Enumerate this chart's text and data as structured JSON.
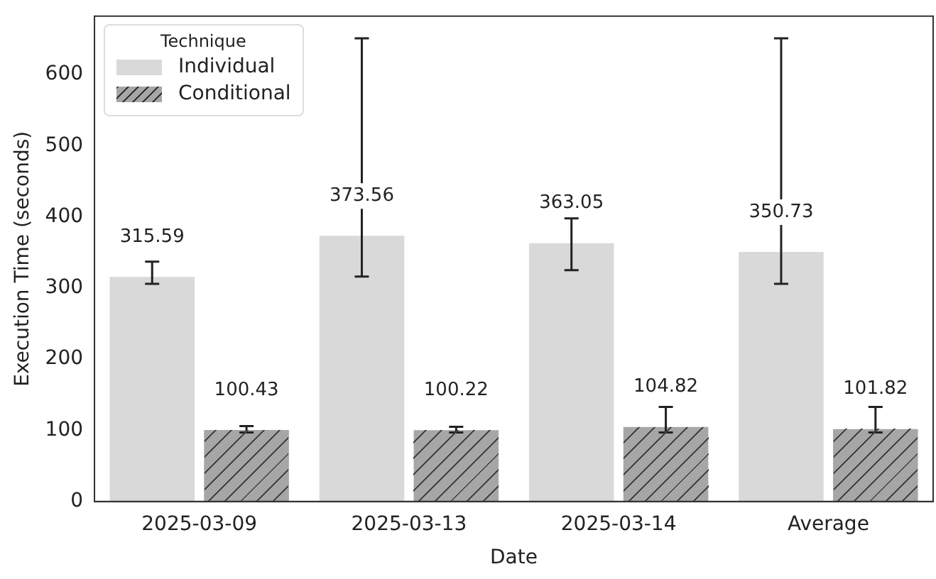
{
  "chart_data": {
    "type": "bar",
    "xlabel": "Date",
    "ylabel": "Execution Time (seconds)",
    "legend_title": "Technique",
    "legend": "top left",
    "categories": [
      "2025-03-09",
      "2025-03-13",
      "2025-03-14",
      "Average"
    ],
    "series": [
      {
        "name": "Individual",
        "color": "#d9d9d9",
        "values": [
          315.59,
          373.56,
          363.05,
          350.73
        ],
        "errors": [
          [
            306,
            337
          ],
          [
            316,
            651
          ],
          [
            325,
            398
          ],
          [
            306,
            651
          ]
        ]
      },
      {
        "name": "Conditional",
        "color": "#a6a6a6",
        "values": [
          100.43,
          100.22,
          104.82,
          101.82
        ],
        "errors": [
          [
            97,
            106
          ],
          [
            97,
            105
          ],
          [
            97,
            133
          ],
          [
            97,
            133
          ]
        ]
      }
    ],
    "ylim": [
      0,
      682
    ],
    "yticks": [
      0,
      100,
      200,
      300,
      400,
      500,
      600
    ],
    "grid": false,
    "data_labels": true
  }
}
